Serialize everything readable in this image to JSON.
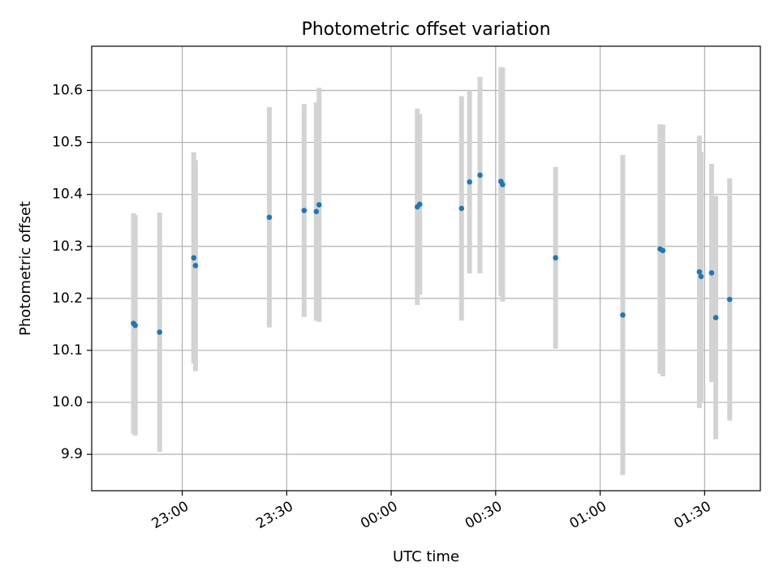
{
  "chart_data": {
    "type": "scatter",
    "title": "Photometric offset variation",
    "xlabel": "UTC time",
    "ylabel": "Photometric offset",
    "x_unit": "UTC clock time; times after midnight written as 24:xx",
    "xlim": [
      "22:34",
      "25:46"
    ],
    "ylim": [
      9.83,
      10.685
    ],
    "x_ticks": [
      "23:00",
      "23:30",
      "00:00",
      "00:30",
      "01:00",
      "01:30"
    ],
    "y_ticks": [
      "9.9",
      "10.0",
      "10.1",
      "10.2",
      "10.3",
      "10.4",
      "10.5",
      "10.6"
    ],
    "grid": true,
    "colors": {
      "points": "#1f77b4",
      "error_bars": "#d3d3d3",
      "grid": "#b0b0b0"
    },
    "points": [
      {
        "x": "22:46.0",
        "y": 10.152,
        "yerr": 0.212
      },
      {
        "x": "22:46.5",
        "y": 10.148,
        "yerr": 0.212
      },
      {
        "x": "22:53.5",
        "y": 10.135,
        "yerr": 0.23
      },
      {
        "x": "23:03.3",
        "y": 10.278,
        "yerr": 0.203
      },
      {
        "x": "23:03.8",
        "y": 10.263,
        "yerr": 0.203
      },
      {
        "x": "23:25.0",
        "y": 10.356,
        "yerr": 0.212
      },
      {
        "x": "23:35.0",
        "y": 10.369,
        "yerr": 0.205
      },
      {
        "x": "23:38.5",
        "y": 10.367,
        "yerr": 0.21
      },
      {
        "x": "23:39.3",
        "y": 10.38,
        "yerr": 0.225
      },
      {
        "x": "24:07.5",
        "y": 10.376,
        "yerr": 0.189
      },
      {
        "x": "24:08.2",
        "y": 10.381,
        "yerr": 0.174
      },
      {
        "x": "24:20.2",
        "y": 10.373,
        "yerr": 0.216
      },
      {
        "x": "24:22.5",
        "y": 10.424,
        "yerr": 0.176
      },
      {
        "x": "24:25.5",
        "y": 10.437,
        "yerr": 0.189
      },
      {
        "x": "24:31.5",
        "y": 10.425,
        "yerr": 0.22
      },
      {
        "x": "24:32.0",
        "y": 10.419,
        "yerr": 0.225
      },
      {
        "x": "24:47.2",
        "y": 10.278,
        "yerr": 0.175
      },
      {
        "x": "25:06.5",
        "y": 10.168,
        "yerr": 0.308
      },
      {
        "x": "25:17.2",
        "y": 10.295,
        "yerr": 0.24
      },
      {
        "x": "25:18.0",
        "y": 10.292,
        "yerr": 0.242
      },
      {
        "x": "25:28.5",
        "y": 10.251,
        "yerr": 0.262
      },
      {
        "x": "25:29.0",
        "y": 10.242,
        "yerr": 0.24
      },
      {
        "x": "25:32.0",
        "y": 10.249,
        "yerr": 0.21
      },
      {
        "x": "25:33.2",
        "y": 10.163,
        "yerr": 0.234
      },
      {
        "x": "25:37.2",
        "y": 10.198,
        "yerr": 0.233
      }
    ]
  }
}
